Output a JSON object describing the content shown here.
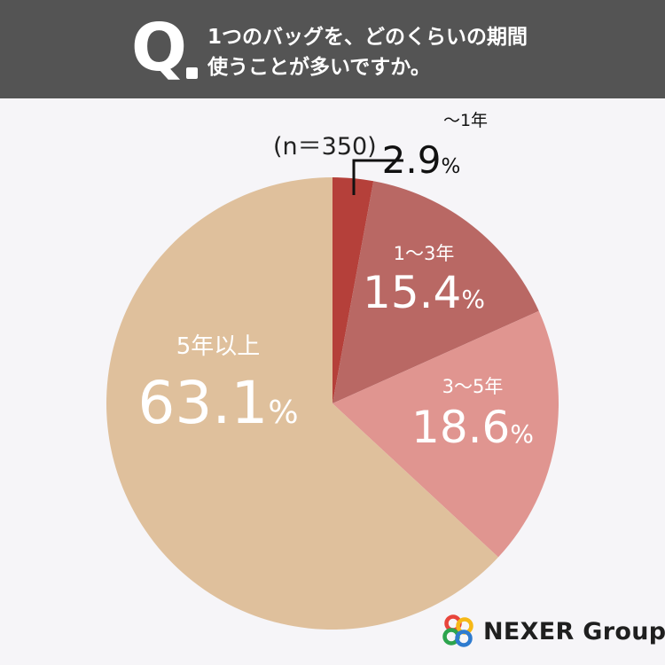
{
  "header": {
    "q_mark": "Q",
    "question_line1": "1つのバッグを、どのくらいの期間",
    "question_line2": "使うことが多いですか。"
  },
  "sample": "(n＝350)",
  "chart_data": {
    "type": "pie",
    "title": "1つのバッグを、どのくらいの期間使うことが多いですか。",
    "n": 350,
    "start_angle_deg": 0,
    "direction": "clockwise",
    "slices": [
      {
        "label": "～1年",
        "value": 2.9,
        "display": "2.9",
        "color": "#b5403a"
      },
      {
        "label": "1～3年",
        "value": 15.4,
        "display": "15.4",
        "color": "#b96864"
      },
      {
        "label": "3～5年",
        "value": 18.6,
        "display": "18.6",
        "color": "#e09590"
      },
      {
        "label": "5年以上",
        "value": 63.1,
        "display": "63.1",
        "color": "#dfc09c"
      }
    ],
    "unit": "%"
  },
  "logo": {
    "text": "NEXER Group",
    "colors": [
      "#e8453c",
      "#f6b816",
      "#2da44e",
      "#2e7bcf"
    ]
  }
}
